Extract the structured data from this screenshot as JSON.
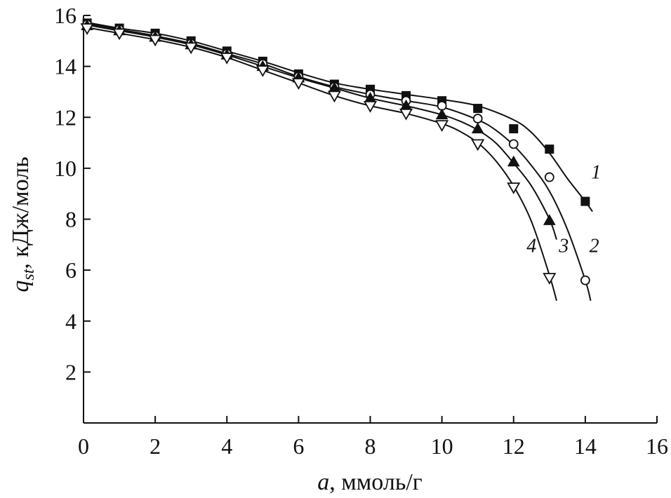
{
  "chart_data": {
    "type": "scatter",
    "xlabel_italic": "a",
    "xlabel_rest": ", ммоль/г",
    "ylabel_italic": "q",
    "ylabel_sub": "st",
    "ylabel_rest": ", кДж/моль",
    "xlim": [
      0,
      16
    ],
    "ylim": [
      0,
      16
    ],
    "xticks": [
      "0",
      "2",
      "4",
      "6",
      "8",
      "10",
      "12",
      "14",
      "16"
    ],
    "yticks": [
      "2",
      "4",
      "6",
      "8",
      "10",
      "12",
      "14",
      "16"
    ],
    "xtick_values": [
      0,
      2,
      4,
      6,
      8,
      10,
      12,
      14,
      16
    ],
    "ytick_values": [
      2,
      4,
      6,
      8,
      10,
      12,
      14,
      16
    ],
    "series": [
      {
        "label": "1",
        "marker": "filled-square",
        "x": [
          0.1,
          1,
          2,
          3,
          4,
          5,
          6,
          7,
          8,
          9,
          10,
          11,
          12,
          13,
          14
        ],
        "y": [
          15.7,
          15.5,
          15.3,
          15.0,
          14.6,
          14.2,
          13.7,
          13.3,
          13.1,
          12.85,
          12.65,
          12.35,
          11.55,
          10.75,
          8.7
        ],
        "curve_x": [
          0,
          1,
          2,
          3,
          4,
          5,
          6,
          7,
          8,
          9,
          10,
          11,
          12,
          12.5,
          13,
          13.5,
          14,
          14.2
        ],
        "curve_y": [
          15.75,
          15.5,
          15.3,
          15.0,
          14.6,
          14.2,
          13.75,
          13.35,
          13.1,
          12.9,
          12.7,
          12.45,
          11.9,
          11.4,
          10.6,
          9.6,
          8.7,
          8.3
        ]
      },
      {
        "label": "2",
        "marker": "open-circle",
        "x": [
          0.1,
          1,
          2,
          3,
          4,
          5,
          6,
          7,
          8,
          9,
          10,
          11,
          12,
          13,
          14
        ],
        "y": [
          15.65,
          15.45,
          15.2,
          14.9,
          14.5,
          14.1,
          13.6,
          13.2,
          12.9,
          12.65,
          12.45,
          11.95,
          10.95,
          9.65,
          5.6
        ],
        "curve_x": [
          0,
          1,
          2,
          3,
          4,
          5,
          6,
          7,
          8,
          9,
          10,
          11,
          11.5,
          12,
          12.5,
          13,
          13.5,
          14,
          14.15
        ],
        "curve_y": [
          15.7,
          15.45,
          15.2,
          14.9,
          14.5,
          14.1,
          13.6,
          13.2,
          12.9,
          12.65,
          12.4,
          11.9,
          11.5,
          10.9,
          10.1,
          9.1,
          7.6,
          5.6,
          4.8
        ]
      },
      {
        "label": "3",
        "marker": "filled-triangle",
        "x": [
          0.1,
          1,
          2,
          3,
          4,
          5,
          6,
          7,
          8,
          9,
          10,
          11,
          12,
          13
        ],
        "y": [
          15.6,
          15.4,
          15.15,
          14.85,
          14.45,
          14.0,
          13.55,
          13.15,
          12.75,
          12.45,
          12.1,
          11.55,
          10.25,
          7.95
        ],
        "curve_x": [
          0,
          1,
          2,
          3,
          4,
          5,
          6,
          7,
          8,
          9,
          10,
          10.5,
          11,
          11.5,
          12,
          12.5,
          13,
          13.2
        ],
        "curve_y": [
          15.65,
          15.4,
          15.15,
          14.85,
          14.45,
          14.0,
          13.55,
          13.15,
          12.75,
          12.45,
          12.1,
          11.85,
          11.5,
          11.0,
          10.2,
          9.3,
          8.0,
          7.2
        ]
      },
      {
        "label": "4",
        "marker": "open-triangle-down",
        "x": [
          0.1,
          1,
          2,
          3,
          4,
          5,
          6,
          7,
          8,
          9,
          10,
          11,
          12,
          13
        ],
        "y": [
          15.5,
          15.3,
          15.05,
          14.75,
          14.35,
          13.85,
          13.35,
          12.85,
          12.45,
          12.15,
          11.7,
          10.95,
          9.25,
          5.7
        ],
        "curve_x": [
          0,
          1,
          2,
          3,
          4,
          5,
          6,
          7,
          8,
          9,
          10,
          10.5,
          11,
          11.5,
          12,
          12.5,
          13,
          13.2
        ],
        "curve_y": [
          15.55,
          15.3,
          15.05,
          14.75,
          14.35,
          13.85,
          13.35,
          12.85,
          12.45,
          12.15,
          11.75,
          11.45,
          11.0,
          10.3,
          9.3,
          7.9,
          5.8,
          4.8
        ]
      }
    ],
    "curve_labels": [
      {
        "text": "1",
        "x": 14.3,
        "y": 9.6
      },
      {
        "text": "2",
        "x": 14.25,
        "y": 6.7
      },
      {
        "text": "3",
        "x": 13.4,
        "y": 6.7
      },
      {
        "text": "4",
        "x": 12.5,
        "y": 6.7
      }
    ],
    "grid": false
  }
}
